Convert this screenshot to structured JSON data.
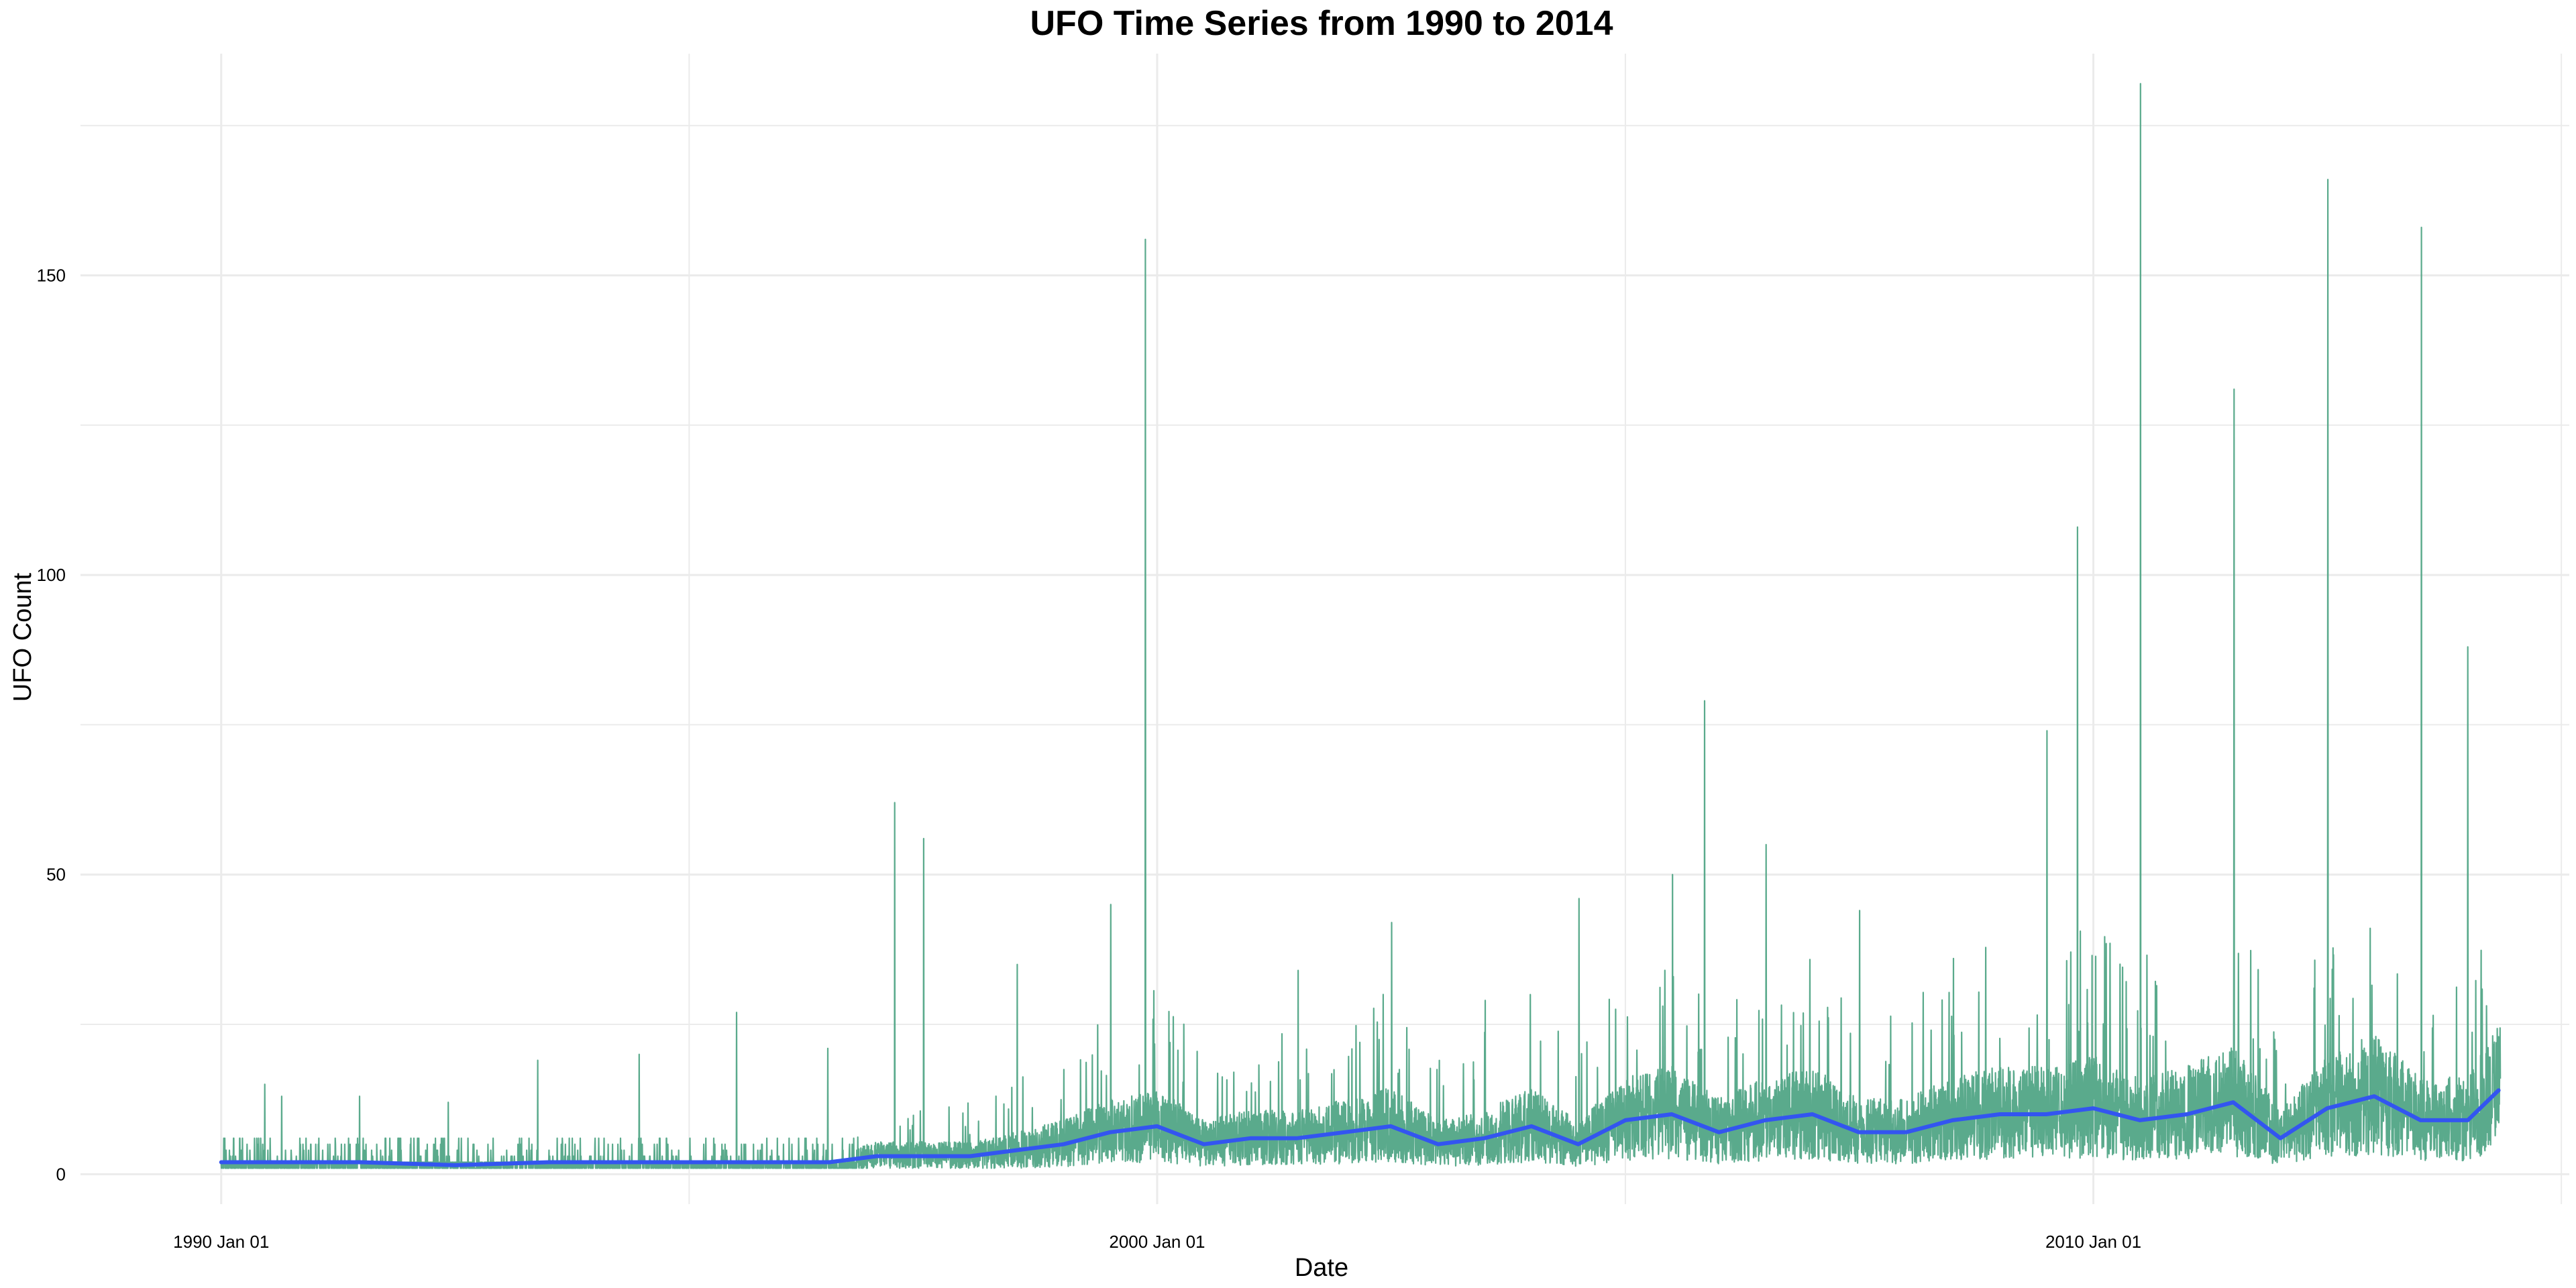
{
  "chart_data": {
    "type": "line",
    "title": "UFO Time Series from 1990 to 2014",
    "xlabel": "Date",
    "ylabel": "UFO Count",
    "xlim": [
      "1988-07-01",
      "2015-02-01"
    ],
    "ylim": [
      -5,
      187
    ],
    "x_ticks": [
      {
        "value": "1990-01-01",
        "label": "1990 Jan 01"
      },
      {
        "value": "2000-01-01",
        "label": "2000 Jan 01"
      },
      {
        "value": "2010-01-01",
        "label": "2010 Jan 01"
      }
    ],
    "x_minor_gridlines": [
      "1995-01-01",
      "2005-01-01",
      "2015-01-01"
    ],
    "y_ticks": [
      0,
      50,
      100,
      150
    ],
    "y_minor_gridlines": [
      25,
      75,
      125,
      175
    ],
    "grid": true,
    "colors": {
      "raw": "#5aaa8c",
      "trend": "#3355f0",
      "grid": "#ebebeb"
    },
    "series": [
      {
        "role": "raw-daily-counts",
        "date_range": [
          "1990-01-01",
          "2014-05-08"
        ],
        "peaks": [
          {
            "date": "1990-06-20",
            "value": 15
          },
          {
            "date": "1990-08-25",
            "value": 13
          },
          {
            "date": "1991-06-25",
            "value": 13
          },
          {
            "date": "1992-06-05",
            "value": 12
          },
          {
            "date": "1993-05-20",
            "value": 19
          },
          {
            "date": "1994-06-20",
            "value": 20
          },
          {
            "date": "1995-07-05",
            "value": 27
          },
          {
            "date": "1996-06-25",
            "value": 21
          },
          {
            "date": "1997-03-13",
            "value": 62
          },
          {
            "date": "1997-07-04",
            "value": 56
          },
          {
            "date": "1998-07-04",
            "value": 35
          },
          {
            "date": "1999-07-04",
            "value": 45
          },
          {
            "date": "1999-11-16",
            "value": 156
          },
          {
            "date": "2001-07-04",
            "value": 34
          },
          {
            "date": "2002-07-04",
            "value": 42
          },
          {
            "date": "2003-07-04",
            "value": 29
          },
          {
            "date": "2004-07-04",
            "value": 46
          },
          {
            "date": "2005-07-04",
            "value": 50
          },
          {
            "date": "2005-11-06",
            "value": 79
          },
          {
            "date": "2006-07-04",
            "value": 55
          },
          {
            "date": "2007-07-04",
            "value": 44
          },
          {
            "date": "2008-07-04",
            "value": 36
          },
          {
            "date": "2009-07-04",
            "value": 74
          },
          {
            "date": "2009-10-31",
            "value": 108
          },
          {
            "date": "2010-07-04",
            "value": 182
          },
          {
            "date": "2011-07-04",
            "value": 131
          },
          {
            "date": "2012-07-04",
            "value": 166
          },
          {
            "date": "2013-07-04",
            "value": 158
          },
          {
            "date": "2014-01-01",
            "value": 88
          }
        ]
      },
      {
        "role": "trend",
        "x": [
          "1990-01-01",
          "1990-07-01",
          "1991-07-01",
          "1992-07-01",
          "1993-07-01",
          "1994-07-01",
          "1995-07-01",
          "1996-07-01",
          "1997-01-01",
          "1997-07-01",
          "1998-01-01",
          "1998-07-01",
          "1999-01-01",
          "1999-07-01",
          "2000-01-01",
          "2000-07-01",
          "2001-01-01",
          "2001-07-01",
          "2002-01-01",
          "2002-07-01",
          "2003-01-01",
          "2003-07-01",
          "2004-01-01",
          "2004-07-01",
          "2005-01-01",
          "2005-07-01",
          "2006-01-01",
          "2006-07-01",
          "2007-01-01",
          "2007-07-01",
          "2008-01-01",
          "2008-07-01",
          "2009-01-01",
          "2009-07-01",
          "2010-01-01",
          "2010-07-01",
          "2011-01-01",
          "2011-07-01",
          "2012-01-01",
          "2012-07-01",
          "2013-01-01",
          "2013-07-01",
          "2014-01-01",
          "2014-05-01"
        ],
        "y": [
          2,
          2,
          2,
          1.5,
          2,
          2,
          2,
          2,
          3,
          3,
          3,
          4,
          5,
          7,
          8,
          5,
          6,
          6,
          7,
          8,
          5,
          6,
          8,
          5,
          9,
          10,
          7,
          9,
          10,
          7,
          7,
          9,
          10,
          10,
          11,
          9,
          10,
          12,
          6,
          11,
          13,
          9,
          9,
          14
        ]
      }
    ]
  }
}
